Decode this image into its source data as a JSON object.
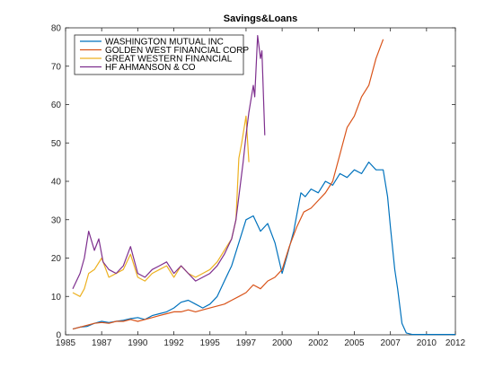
{
  "chart_data": {
    "type": "line",
    "title": "Savings&Loans",
    "xlabel": "",
    "ylabel": "",
    "xlim": [
      1985,
      2012
    ],
    "ylim": [
      0,
      80
    ],
    "xticks": [
      "1985",
      "1987",
      "1990",
      "1992",
      "1995",
      "1997",
      "2000",
      "2002",
      "2005",
      "2007",
      "2010",
      "2012"
    ],
    "xtick_values": [
      1985,
      1987.5,
      1990,
      1992.5,
      1995,
      1997.5,
      2000,
      2002.5,
      2005,
      2007.5,
      2010,
      2012
    ],
    "yticks": [
      0,
      10,
      20,
      30,
      40,
      50,
      60,
      70,
      80
    ],
    "legend_position": "top-left",
    "grid": false,
    "series": [
      {
        "name": "WASHINGTON MUTUAL INC",
        "color": "#0072BD",
        "points": [
          [
            1985.5,
            1.5
          ],
          [
            1986,
            2
          ],
          [
            1986.5,
            2.2
          ],
          [
            1987,
            3
          ],
          [
            1987.5,
            3.5
          ],
          [
            1988,
            3.2
          ],
          [
            1988.5,
            3.5
          ],
          [
            1989,
            3.8
          ],
          [
            1989.5,
            4.2
          ],
          [
            1990,
            4.5
          ],
          [
            1990.5,
            4
          ],
          [
            1991,
            5
          ],
          [
            1991.5,
            5.5
          ],
          [
            1992,
            6
          ],
          [
            1992.5,
            7
          ],
          [
            1993,
            8.5
          ],
          [
            1993.5,
            9
          ],
          [
            1994,
            8
          ],
          [
            1994.5,
            7
          ],
          [
            1995,
            8
          ],
          [
            1995.5,
            10
          ],
          [
            1996,
            14
          ],
          [
            1996.5,
            18
          ],
          [
            1997,
            24
          ],
          [
            1997.5,
            30
          ],
          [
            1998,
            31
          ],
          [
            1998.5,
            27
          ],
          [
            1999,
            29
          ],
          [
            1999.5,
            24
          ],
          [
            2000,
            16
          ],
          [
            2000.3,
            20
          ],
          [
            2000.8,
            27
          ],
          [
            2001,
            31
          ],
          [
            2001.3,
            37
          ],
          [
            2001.6,
            36
          ],
          [
            2002,
            38
          ],
          [
            2002.5,
            37
          ],
          [
            2003,
            40
          ],
          [
            2003.5,
            39
          ],
          [
            2004,
            42
          ],
          [
            2004.5,
            41
          ],
          [
            2005,
            43
          ],
          [
            2005.5,
            42
          ],
          [
            2006,
            45
          ],
          [
            2006.5,
            43
          ],
          [
            2007,
            43
          ],
          [
            2007.3,
            36
          ],
          [
            2007.5,
            28
          ],
          [
            2007.8,
            17
          ],
          [
            2008,
            12
          ],
          [
            2008.3,
            3
          ],
          [
            2008.6,
            0.5
          ],
          [
            2009,
            0.1
          ],
          [
            2010,
            0.1
          ],
          [
            2011,
            0.1
          ],
          [
            2012,
            0.1
          ]
        ]
      },
      {
        "name": "GOLDEN WEST FINANCIAL CORP",
        "color": "#D95319",
        "points": [
          [
            1985.5,
            1.5
          ],
          [
            1986,
            2
          ],
          [
            1986.5,
            2.5
          ],
          [
            1987,
            3
          ],
          [
            1987.5,
            3.2
          ],
          [
            1988,
            3
          ],
          [
            1988.5,
            3.5
          ],
          [
            1989,
            3.5
          ],
          [
            1989.5,
            4
          ],
          [
            1990,
            3.5
          ],
          [
            1990.5,
            4
          ],
          [
            1991,
            4.5
          ],
          [
            1991.5,
            5
          ],
          [
            1992,
            5.5
          ],
          [
            1992.5,
            6
          ],
          [
            1993,
            6
          ],
          [
            1993.5,
            6.5
          ],
          [
            1994,
            6
          ],
          [
            1994.5,
            6.5
          ],
          [
            1995,
            7
          ],
          [
            1995.5,
            7.5
          ],
          [
            1996,
            8
          ],
          [
            1996.5,
            9
          ],
          [
            1997,
            10
          ],
          [
            1997.5,
            11
          ],
          [
            1998,
            13
          ],
          [
            1998.5,
            12
          ],
          [
            1999,
            14
          ],
          [
            1999.5,
            15
          ],
          [
            2000,
            17
          ],
          [
            2000.5,
            23
          ],
          [
            2001,
            28
          ],
          [
            2001.5,
            32
          ],
          [
            2002,
            33
          ],
          [
            2002.5,
            35
          ],
          [
            2003,
            37
          ],
          [
            2003.5,
            40
          ],
          [
            2004,
            47
          ],
          [
            2004.5,
            54
          ],
          [
            2005,
            57
          ],
          [
            2005.5,
            62
          ],
          [
            2006,
            65
          ],
          [
            2006.5,
            72
          ],
          [
            2007,
            77
          ]
        ]
      },
      {
        "name": "GREAT WESTERN FINANCIAL",
        "color": "#EDB120",
        "points": [
          [
            1985.5,
            11
          ],
          [
            1986,
            10
          ],
          [
            1986.3,
            12
          ],
          [
            1986.6,
            16
          ],
          [
            1987,
            17
          ],
          [
            1987.5,
            20
          ],
          [
            1988,
            15
          ],
          [
            1988.5,
            16
          ],
          [
            1989,
            17
          ],
          [
            1989.5,
            21
          ],
          [
            1990,
            15
          ],
          [
            1990.5,
            14
          ],
          [
            1991,
            16
          ],
          [
            1991.5,
            17
          ],
          [
            1992,
            18
          ],
          [
            1992.5,
            15
          ],
          [
            1993,
            18
          ],
          [
            1993.5,
            16
          ],
          [
            1994,
            15
          ],
          [
            1994.5,
            16
          ],
          [
            1995,
            17
          ],
          [
            1995.5,
            19
          ],
          [
            1996,
            22
          ],
          [
            1996.5,
            25
          ],
          [
            1996.8,
            30
          ],
          [
            1997,
            46
          ],
          [
            1997.2,
            50
          ],
          [
            1997.5,
            57
          ],
          [
            1997.7,
            45
          ]
        ]
      },
      {
        "name": "HF AHMANSON & CO",
        "color": "#7E2F8E",
        "points": [
          [
            1985.5,
            12
          ],
          [
            1986,
            16
          ],
          [
            1986.3,
            20
          ],
          [
            1986.6,
            27
          ],
          [
            1987,
            22
          ],
          [
            1987.3,
            25
          ],
          [
            1987.6,
            19
          ],
          [
            1988,
            17
          ],
          [
            1988.5,
            16
          ],
          [
            1989,
            18
          ],
          [
            1989.5,
            23
          ],
          [
            1990,
            16
          ],
          [
            1990.5,
            15
          ],
          [
            1991,
            17
          ],
          [
            1991.5,
            18
          ],
          [
            1992,
            19
          ],
          [
            1992.5,
            16
          ],
          [
            1993,
            18
          ],
          [
            1993.5,
            16
          ],
          [
            1994,
            14
          ],
          [
            1994.5,
            15
          ],
          [
            1995,
            16
          ],
          [
            1995.5,
            18
          ],
          [
            1996,
            21
          ],
          [
            1996.5,
            25
          ],
          [
            1996.8,
            30
          ],
          [
            1997,
            36
          ],
          [
            1997.3,
            45
          ],
          [
            1997.5,
            52
          ],
          [
            1997.7,
            58
          ],
          [
            1998,
            65
          ],
          [
            1998.1,
            62
          ],
          [
            1998.3,
            78
          ],
          [
            1998.5,
            72
          ],
          [
            1998.6,
            74
          ],
          [
            1998.8,
            52
          ]
        ]
      }
    ]
  }
}
